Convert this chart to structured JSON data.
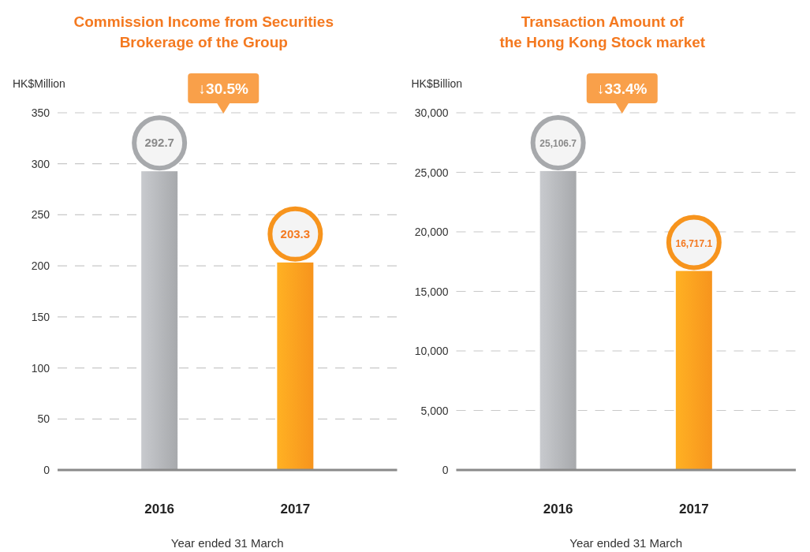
{
  "chart_data": [
    {
      "type": "bar",
      "title": "Commission Income from Securities\nBrokerage of the Group",
      "ylabel": "HK$Million",
      "xlabel": "Year ended 31 March",
      "categories": [
        "2016",
        "2017"
      ],
      "values": [
        292.7,
        203.3
      ],
      "colors": [
        "#a7a9ac",
        "#f7941d"
      ],
      "ylim": [
        0,
        350
      ],
      "yticks": [
        0,
        50,
        100,
        150,
        200,
        250,
        300,
        350
      ],
      "grid": "y",
      "data_labels": true,
      "annotations": [
        "↓30.5%"
      ]
    },
    {
      "type": "bar",
      "title": "Transaction Amount of\nthe Hong Kong Stock market",
      "ylabel": "HK$Billion",
      "xlabel": "Year ended 31 March",
      "categories": [
        "2016",
        "2017"
      ],
      "values": [
        25106.7,
        16717.1
      ],
      "value_labels": [
        "25,106.7",
        "16,717.1"
      ],
      "colors": [
        "#a7a9ac",
        "#f7941d"
      ],
      "ylim": [
        0,
        30000
      ],
      "yticks": [
        0,
        {
          "value": 5000,
          "label": "5,000"
        },
        {
          "value": 10000,
          "label": "10,000"
        },
        {
          "value": 15000,
          "label": "15,000"
        },
        {
          "value": 20000,
          "label": "20,000"
        },
        {
          "value": 25000,
          "label": "25,000"
        },
        {
          "value": 30000,
          "label": "30,000"
        }
      ],
      "grid": "y",
      "annotations": [
        "↓33.4%"
      ]
    }
  ]
}
